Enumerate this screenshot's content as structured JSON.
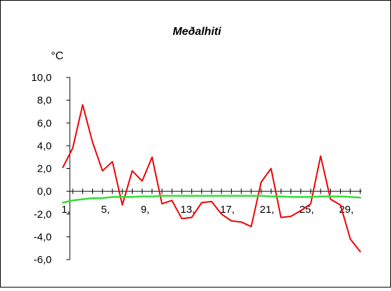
{
  "chart_data": {
    "type": "line",
    "title": "Meðalhiti",
    "unit_label": "°C",
    "xlabel": "",
    "ylabel": "",
    "ylim": [
      -6,
      10
    ],
    "y_ticks": [
      -6,
      -4,
      -2,
      0,
      2,
      4,
      6,
      8,
      10
    ],
    "y_tick_labels": [
      "-6,0",
      "-4,0",
      "-2,0",
      "0,0",
      "2,0",
      "4,0",
      "6,0",
      "8,0",
      "10,0"
    ],
    "x": [
      1,
      2,
      3,
      4,
      5,
      6,
      7,
      8,
      9,
      10,
      11,
      12,
      13,
      14,
      15,
      16,
      17,
      18,
      19,
      20,
      21,
      22,
      23,
      24,
      25,
      26,
      27,
      28,
      29,
      30,
      31
    ],
    "x_tick_labels": [
      {
        "x": 1,
        "label": "1,"
      },
      {
        "x": 5,
        "label": "5,"
      },
      {
        "x": 9,
        "label": "9,"
      },
      {
        "x": 13,
        "label": "13,"
      },
      {
        "x": 17,
        "label": "17,"
      },
      {
        "x": 21,
        "label": "21,"
      },
      {
        "x": 25,
        "label": "25,"
      },
      {
        "x": 29,
        "label": "29,"
      }
    ],
    "grid": false,
    "legend": "none",
    "series": [
      {
        "color": "#ee0000",
        "values": [
          2.1,
          3.8,
          7.6,
          4.3,
          1.8,
          2.6,
          -1.2,
          1.8,
          0.9,
          3.0,
          -1.1,
          -0.8,
          -2.4,
          -2.3,
          -1.0,
          -0.9,
          -2.0,
          -2.6,
          -2.7,
          -3.1,
          0.8,
          2.0,
          -2.3,
          -2.2,
          -1.7,
          -1.1,
          3.1,
          -0.7,
          -1.2,
          -4.2,
          -5.3
        ]
      },
      {
        "color": "#33dd33",
        "values": [
          -1.0,
          -0.8,
          -0.7,
          -0.6,
          -0.6,
          -0.5,
          -0.5,
          -0.5,
          -0.45,
          -0.45,
          -0.4,
          -0.4,
          -0.4,
          -0.4,
          -0.4,
          -0.4,
          -0.4,
          -0.4,
          -0.4,
          -0.4,
          -0.4,
          -0.45,
          -0.45,
          -0.5,
          -0.5,
          -0.5,
          -0.45,
          -0.45,
          -0.45,
          -0.5,
          -0.55
        ]
      }
    ]
  }
}
